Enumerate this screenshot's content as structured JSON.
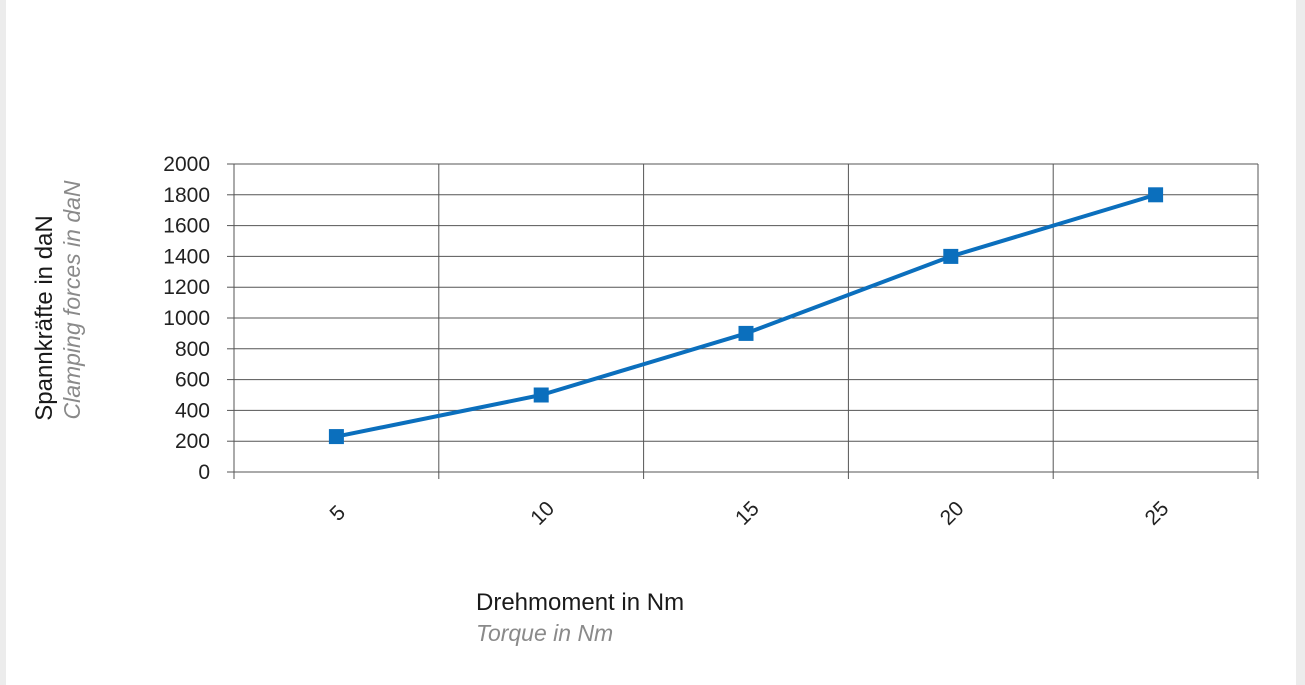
{
  "chart_data": {
    "type": "line",
    "x": [
      5,
      10,
      15,
      20,
      25
    ],
    "series": [
      {
        "values": [
          230,
          500,
          900,
          1400,
          1800
        ],
        "color": "#0b6fbd",
        "marker": "square"
      }
    ],
    "xlabel": "Drehmoment in Nm",
    "xlabel_sub": "Torque in Nm",
    "ylabel": "Spannkräfte in daN",
    "ylabel_sub": "Clamping forces in daN",
    "ylim": [
      0,
      2000
    ],
    "yticks": [
      "0",
      "200",
      "400",
      "600",
      "800",
      "1000",
      "1200",
      "1400",
      "1600",
      "1800",
      "2000"
    ],
    "xticks": [
      "5",
      "10",
      "15",
      "20",
      "25"
    ],
    "grid": true,
    "legend": "none"
  }
}
